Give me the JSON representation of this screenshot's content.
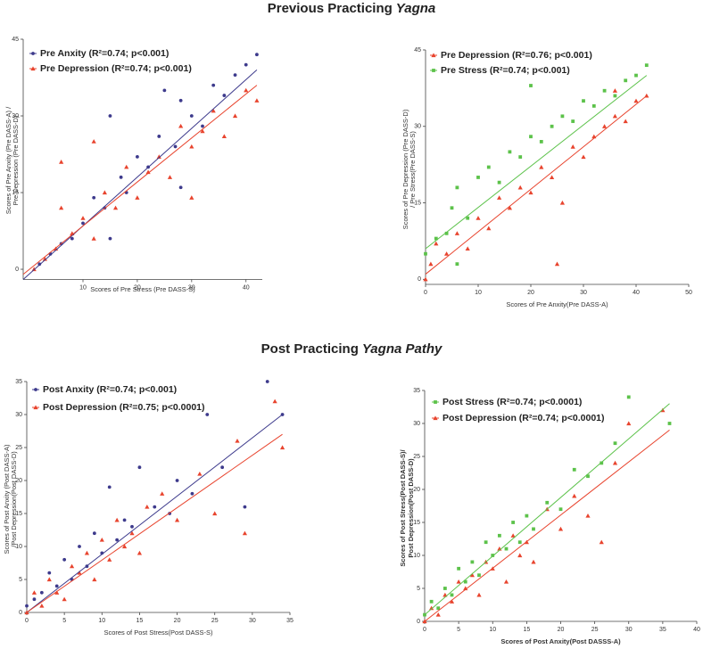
{
  "sections": [
    {
      "title": [
        "Previous Practicing",
        "Yagna"
      ]
    },
    {
      "title": [
        "Post Practicing",
        "Yagna Pathy"
      ]
    }
  ],
  "chart_data": [
    {
      "type": "scatter",
      "xlabel": "Scores of Pre Stress (Pre DASS-S)",
      "ylabel": [
        "Scores of Pre Anxity (Pre DASS-A) /",
        "Pre Depression (Pre DASS-D)"
      ],
      "xlim": [
        -1,
        43
      ],
      "ylim": [
        -2,
        45
      ],
      "xticks": [
        10,
        20,
        30,
        40
      ],
      "yticks": [
        0,
        15,
        30,
        45
      ],
      "series": [
        {
          "name": "Pre Anxity (R²=0.74; p<0.001)",
          "color": "#3d3a8c",
          "marker": "circle",
          "x": [
            2,
            4,
            6,
            8,
            10,
            12,
            14,
            15,
            17,
            18,
            20,
            22,
            24,
            25,
            27,
            28,
            30,
            32,
            34,
            36,
            38,
            40,
            42,
            15,
            28
          ],
          "values": [
            1,
            3,
            5,
            6,
            9,
            14,
            12,
            30,
            18,
            15,
            22,
            20,
            26,
            35,
            24,
            33,
            30,
            28,
            36,
            34,
            38,
            40,
            42,
            6,
            16
          ],
          "trend_x": [
            -1,
            42
          ],
          "trend_y": [
            -2,
            39
          ]
        },
        {
          "name": "Pre Depression (R²=0.74; p<0.001)",
          "color": "#e8442e",
          "marker": "triangle",
          "x": [
            1,
            3,
            5,
            6,
            8,
            10,
            12,
            14,
            16,
            18,
            20,
            22,
            24,
            26,
            28,
            30,
            32,
            34,
            36,
            38,
            40,
            42,
            6,
            12,
            30
          ],
          "values": [
            0,
            2,
            4,
            21,
            7,
            10,
            6,
            15,
            12,
            20,
            14,
            19,
            22,
            18,
            28,
            24,
            27,
            31,
            26,
            30,
            35,
            33,
            12,
            25,
            14
          ],
          "trend_x": [
            -1,
            42
          ],
          "trend_y": [
            -1,
            36
          ]
        }
      ]
    },
    {
      "type": "scatter",
      "xlabel": "Scores of Pre Anxity(Pre DASS-A)",
      "ylabel": [
        "Scores of Pre Depression (Pre DASS-D)",
        "/ Pre Stress(Pre DASS-S)"
      ],
      "xlim": [
        0,
        50
      ],
      "ylim": [
        -1,
        45
      ],
      "xticks": [
        0,
        10,
        20,
        30,
        40,
        50
      ],
      "yticks": [
        0,
        15,
        30,
        45
      ],
      "series": [
        {
          "name": "Pre Depression (R²=0.76; p<0.001)",
          "color": "#e8442e",
          "marker": "triangle",
          "x": [
            0,
            1,
            2,
            4,
            6,
            8,
            10,
            12,
            14,
            16,
            18,
            20,
            22,
            24,
            26,
            28,
            30,
            32,
            34,
            36,
            38,
            40,
            42,
            25,
            36
          ],
          "values": [
            0,
            3,
            7,
            5,
            9,
            6,
            12,
            10,
            16,
            14,
            18,
            17,
            22,
            20,
            15,
            26,
            24,
            28,
            30,
            32,
            31,
            35,
            36,
            3,
            37
          ],
          "trend_x": [
            0,
            42
          ],
          "trend_y": [
            1,
            36
          ]
        },
        {
          "name": "Pre Stress (R²=0.74; p<0.001)",
          "color": "#5cc24a",
          "marker": "square",
          "x": [
            0,
            2,
            4,
            5,
            6,
            8,
            10,
            12,
            14,
            16,
            18,
            20,
            22,
            24,
            26,
            28,
            30,
            32,
            34,
            36,
            38,
            40,
            42,
            6,
            20
          ],
          "values": [
            5,
            8,
            9,
            14,
            18,
            12,
            20,
            22,
            19,
            25,
            24,
            28,
            27,
            30,
            32,
            31,
            35,
            34,
            37,
            36,
            39,
            40,
            42,
            3,
            38
          ],
          "trend_x": [
            0,
            42
          ],
          "trend_y": [
            6,
            40
          ]
        }
      ]
    },
    {
      "type": "scatter",
      "xlabel": "Scores of Post Stress(Post DASS-S)",
      "ylabel": [
        "Scores of Post Anxity (Post DASS-A)",
        "/Post Depression(Post DASS-D)"
      ],
      "xlim": [
        0,
        35
      ],
      "ylim": [
        0,
        35
      ],
      "xticks": [
        0,
        5,
        10,
        15,
        20,
        25,
        30,
        35
      ],
      "yticks": [
        0,
        5,
        10,
        15,
        20,
        25,
        30,
        35
      ],
      "series": [
        {
          "name": "Post Anxity (R²=0.74; p<0.001)",
          "color": "#3d3a8c",
          "marker": "circle",
          "x": [
            0,
            1,
            2,
            3,
            4,
            5,
            6,
            7,
            8,
            9,
            10,
            11,
            12,
            13,
            14,
            15,
            17,
            19,
            20,
            22,
            24,
            26,
            29,
            32,
            34
          ],
          "values": [
            1,
            2,
            3,
            6,
            4,
            8,
            5,
            10,
            7,
            12,
            9,
            19,
            11,
            14,
            13,
            22,
            16,
            15,
            20,
            18,
            30,
            22,
            16,
            35,
            30
          ],
          "trend_x": [
            0,
            34
          ],
          "trend_y": [
            0,
            30
          ]
        },
        {
          "name": "Post Depression (R²=0.75; p<0.0001)",
          "color": "#e8442e",
          "marker": "triangle",
          "x": [
            0,
            1,
            2,
            3,
            4,
            5,
            6,
            7,
            8,
            9,
            10,
            11,
            12,
            13,
            14,
            15,
            16,
            18,
            20,
            23,
            25,
            28,
            29,
            33,
            34
          ],
          "values": [
            0,
            3,
            1,
            5,
            3,
            2,
            7,
            6,
            9,
            5,
            11,
            8,
            14,
            10,
            12,
            9,
            16,
            18,
            14,
            21,
            15,
            26,
            12,
            32,
            25
          ],
          "trend_x": [
            0,
            34
          ],
          "trend_y": [
            0,
            27
          ]
        }
      ]
    },
    {
      "type": "scatter",
      "xlabel": "Scores of Post Anxity(Post DASSS-A)",
      "ylabel": [
        "Scores of Post Stress(Post DASS-S)/",
        "Post Depression(Post DASS-D)"
      ],
      "xlim": [
        0,
        40
      ],
      "ylim": [
        0,
        35
      ],
      "xticks": [
        0,
        5,
        10,
        15,
        20,
        25,
        30,
        35,
        40
      ],
      "yticks": [
        0,
        5,
        10,
        15,
        20,
        25,
        30,
        35
      ],
      "series": [
        {
          "name": "Post Stress (R²=0.74; p<0.0001)",
          "color": "#5cc24a",
          "marker": "square",
          "x": [
            0,
            1,
            2,
            3,
            4,
            5,
            6,
            7,
            8,
            9,
            10,
            11,
            12,
            13,
            14,
            15,
            16,
            18,
            20,
            22,
            24,
            26,
            28,
            30,
            36
          ],
          "values": [
            1,
            3,
            2,
            5,
            4,
            8,
            6,
            9,
            7,
            12,
            10,
            13,
            11,
            15,
            12,
            16,
            14,
            18,
            17,
            23,
            22,
            24,
            27,
            34,
            30
          ],
          "trend_x": [
            0,
            36
          ],
          "trend_y": [
            1,
            33
          ]
        },
        {
          "name": "Post Depression (R²=0.74; p<0.0001)",
          "color": "#e8442e",
          "marker": "triangle",
          "x": [
            0,
            1,
            2,
            3,
            4,
            5,
            6,
            7,
            8,
            9,
            10,
            11,
            12,
            13,
            14,
            15,
            16,
            18,
            20,
            22,
            24,
            26,
            28,
            30,
            35
          ],
          "values": [
            0,
            2,
            1,
            4,
            3,
            6,
            5,
            7,
            4,
            9,
            8,
            11,
            6,
            13,
            10,
            12,
            9,
            17,
            14,
            19,
            16,
            12,
            24,
            30,
            32
          ],
          "trend_x": [
            0,
            36
          ],
          "trend_y": [
            0,
            29
          ]
        }
      ]
    }
  ]
}
